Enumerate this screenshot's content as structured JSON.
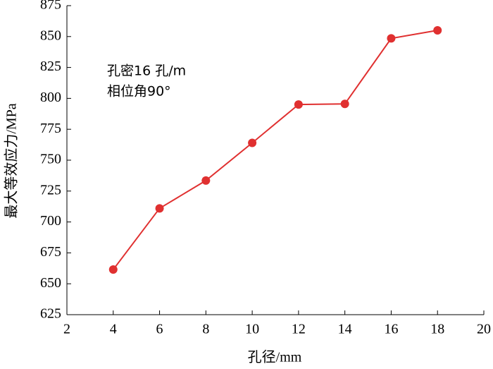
{
  "chart_data": {
    "type": "line",
    "xlabel": "孔径/mm",
    "ylabel": "最大等效应力/MPa",
    "annotations": [
      "孔密16 孔/m",
      "相位角90°"
    ],
    "x": [
      4,
      6,
      8,
      10,
      12,
      14,
      16,
      18
    ],
    "series": [
      {
        "color": "#e03030",
        "values": [
          661.5,
          711,
          733.5,
          764,
          795,
          795.5,
          848.5,
          855
        ]
      }
    ],
    "xlim": [
      2,
      20
    ],
    "xticks": [
      2,
      4,
      6,
      8,
      10,
      12,
      14,
      16,
      18,
      20
    ],
    "ylim": [
      625,
      875
    ],
    "yticks": [
      625,
      650,
      675,
      700,
      725,
      750,
      775,
      800,
      825,
      850,
      875
    ]
  }
}
